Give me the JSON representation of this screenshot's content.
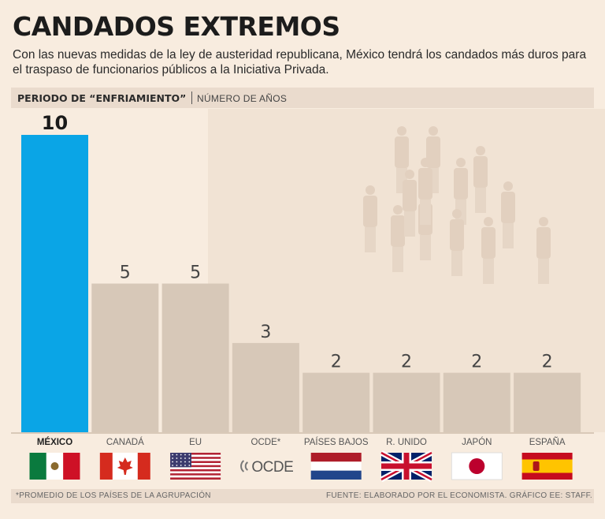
{
  "title": "CANDADOS EXTREMOS",
  "subtitle": "Con las nuevas medidas de la ley de austeridad republicana, México tendrá los candados más duros para el traspaso de funcionarios públicos a la Iniciativa Privada.",
  "header": {
    "bold": "PERIODO DE “ENFRIAMIENTO”",
    "normal": "NÚMERO DE AÑOS"
  },
  "footer": {
    "note": "*PROMEDIO DE LOS PAÍSES DE LA AGRUPACIÓN",
    "source": "FUENTE: ELABORADO POR EL ECONOMISTA. GRÁFICO EE: STAFF."
  },
  "colors": {
    "highlight": "#0aa5e6",
    "bar": "#d7c8b8",
    "label": "#333333"
  },
  "chart_data": {
    "type": "bar",
    "title": "CANDADOS EXTREMOS",
    "ylabel": "Número de años",
    "categories": [
      "MÉXICO",
      "CANADÁ",
      "EU",
      "OCDE*",
      "PAÍSES BAJOS",
      "R. UNIDO",
      "JAPÓN",
      "ESPAÑA"
    ],
    "values": [
      10,
      5,
      5,
      3,
      2,
      2,
      2,
      2
    ],
    "highlight_index": 0,
    "ylim": [
      0,
      10
    ],
    "flags": [
      "mexico",
      "canada",
      "usa",
      "ocde",
      "netherlands",
      "uk",
      "japan",
      "spain"
    ],
    "ocde_logo_text": "OCDE"
  }
}
